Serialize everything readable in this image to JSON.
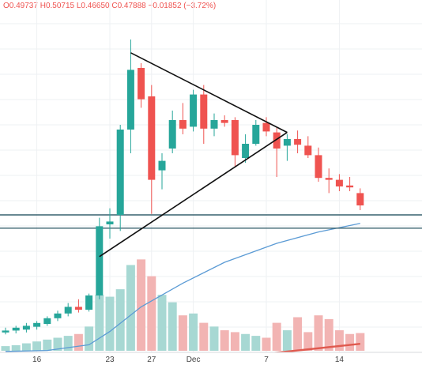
{
  "legend": {
    "open": "O0.49737",
    "high": "H0.50715",
    "low": "L0.46650",
    "close": "C0.47888",
    "change": "−0.01852 (−3.72%)"
  },
  "colors": {
    "up": "#26a69a",
    "down": "#ef5350",
    "volume_up": "#a7d8d3",
    "volume_down": "#f2b4b3",
    "ma_fast": "#5b9bd5",
    "ma_slow": "#e05a4f",
    "trendline": "#111111",
    "horizontal_line": "#37616e",
    "grid": "#eef0f3"
  },
  "chart_data": {
    "type": "candlestick",
    "x_ticks": [
      {
        "label": "16",
        "index": 3
      },
      {
        "label": "23",
        "index": 10
      },
      {
        "label": "27",
        "index": 14
      },
      {
        "label": "Dec",
        "index": 18
      },
      {
        "label": "7",
        "index": 25
      },
      {
        "label": "14",
        "index": 32
      }
    ],
    "price_range": [
      0.21,
      0.57
    ],
    "volume_range": [
      0,
      1
    ],
    "candles": [
      {
        "o": 0.231,
        "h": 0.236,
        "l": 0.229,
        "c": 0.233,
        "v": 0.05
      },
      {
        "o": 0.233,
        "h": 0.238,
        "l": 0.23,
        "c": 0.236,
        "v": 0.06
      },
      {
        "o": 0.234,
        "h": 0.241,
        "l": 0.231,
        "c": 0.238,
        "v": 0.08
      },
      {
        "o": 0.237,
        "h": 0.243,
        "l": 0.234,
        "c": 0.241,
        "v": 0.1
      },
      {
        "o": 0.24,
        "h": 0.248,
        "l": 0.238,
        "c": 0.246,
        "v": 0.12
      },
      {
        "o": 0.246,
        "h": 0.254,
        "l": 0.243,
        "c": 0.251,
        "v": 0.14
      },
      {
        "o": 0.251,
        "h": 0.262,
        "l": 0.248,
        "c": 0.258,
        "v": 0.16
      },
      {
        "o": 0.258,
        "h": 0.266,
        "l": 0.252,
        "c": 0.255,
        "v": 0.18
      },
      {
        "o": 0.255,
        "h": 0.272,
        "l": 0.253,
        "c": 0.27,
        "v": 0.26
      },
      {
        "o": 0.27,
        "h": 0.352,
        "l": 0.266,
        "c": 0.343,
        "v": 0.6
      },
      {
        "o": 0.345,
        "h": 0.362,
        "l": 0.33,
        "c": 0.348,
        "v": 0.58
      },
      {
        "o": 0.355,
        "h": 0.45,
        "l": 0.338,
        "c": 0.445,
        "v": 0.66
      },
      {
        "o": 0.445,
        "h": 0.54,
        "l": 0.42,
        "c": 0.508,
        "v": 0.92
      },
      {
        "o": 0.51,
        "h": 0.515,
        "l": 0.468,
        "c": 0.477,
        "v": 0.98
      },
      {
        "o": 0.48,
        "h": 0.492,
        "l": 0.356,
        "c": 0.392,
        "v": 0.8
      },
      {
        "o": 0.402,
        "h": 0.42,
        "l": 0.382,
        "c": 0.412,
        "v": 0.6
      },
      {
        "o": 0.425,
        "h": 0.465,
        "l": 0.42,
        "c": 0.455,
        "v": 0.52
      },
      {
        "o": 0.455,
        "h": 0.473,
        "l": 0.44,
        "c": 0.446,
        "v": 0.38
      },
      {
        "o": 0.448,
        "h": 0.487,
        "l": 0.443,
        "c": 0.482,
        "v": 0.4
      },
      {
        "o": 0.482,
        "h": 0.492,
        "l": 0.43,
        "c": 0.446,
        "v": 0.3
      },
      {
        "o": 0.446,
        "h": 0.462,
        "l": 0.438,
        "c": 0.455,
        "v": 0.26
      },
      {
        "o": 0.455,
        "h": 0.46,
        "l": 0.448,
        "c": 0.452,
        "v": 0.22
      },
      {
        "o": 0.455,
        "h": 0.458,
        "l": 0.405,
        "c": 0.418,
        "v": 0.2
      },
      {
        "o": 0.415,
        "h": 0.44,
        "l": 0.41,
        "c": 0.43,
        "v": 0.18
      },
      {
        "o": 0.43,
        "h": 0.455,
        "l": 0.428,
        "c": 0.45,
        "v": 0.16
      },
      {
        "o": 0.452,
        "h": 0.458,
        "l": 0.438,
        "c": 0.443,
        "v": 0.14
      },
      {
        "o": 0.442,
        "h": 0.447,
        "l": 0.395,
        "c": 0.425,
        "v": 0.3
      },
      {
        "o": 0.428,
        "h": 0.44,
        "l": 0.412,
        "c": 0.435,
        "v": 0.22
      },
      {
        "o": 0.435,
        "h": 0.444,
        "l": 0.42,
        "c": 0.429,
        "v": 0.36
      },
      {
        "o": 0.428,
        "h": 0.438,
        "l": 0.415,
        "c": 0.418,
        "v": 0.2
      },
      {
        "o": 0.418,
        "h": 0.426,
        "l": 0.39,
        "c": 0.394,
        "v": 0.38
      },
      {
        "o": 0.394,
        "h": 0.404,
        "l": 0.378,
        "c": 0.392,
        "v": 0.34
      },
      {
        "o": 0.392,
        "h": 0.398,
        "l": 0.38,
        "c": 0.385,
        "v": 0.22
      },
      {
        "o": 0.386,
        "h": 0.395,
        "l": 0.38,
        "c": 0.384,
        "v": 0.18
      },
      {
        "o": 0.378,
        "h": 0.383,
        "l": 0.36,
        "c": 0.365,
        "v": 0.19
      }
    ],
    "moving_averages": [
      {
        "color_key": "ma_fast",
        "points": [
          [
            0,
            0.211
          ],
          [
            4,
            0.212
          ],
          [
            8,
            0.218
          ],
          [
            10,
            0.232
          ],
          [
            13,
            0.258
          ],
          [
            17,
            0.283
          ],
          [
            21,
            0.305
          ],
          [
            26,
            0.325
          ],
          [
            30,
            0.337
          ],
          [
            34,
            0.346
          ]
        ]
      },
      {
        "color_key": "ma_slow",
        "points": [
          [
            0,
            0.185
          ],
          [
            6,
            0.187
          ],
          [
            10,
            0.19
          ],
          [
            16,
            0.196
          ],
          [
            22,
            0.205
          ],
          [
            28,
            0.212
          ],
          [
            34,
            0.219
          ]
        ]
      }
    ],
    "horizontal_lines": [
      0.355,
      0.341
    ],
    "triangle": {
      "upper": [
        [
          12,
          0.526
        ],
        [
          27,
          0.442
        ]
      ],
      "lower": [
        [
          9,
          0.311
        ],
        [
          27,
          0.442
        ]
      ]
    }
  }
}
